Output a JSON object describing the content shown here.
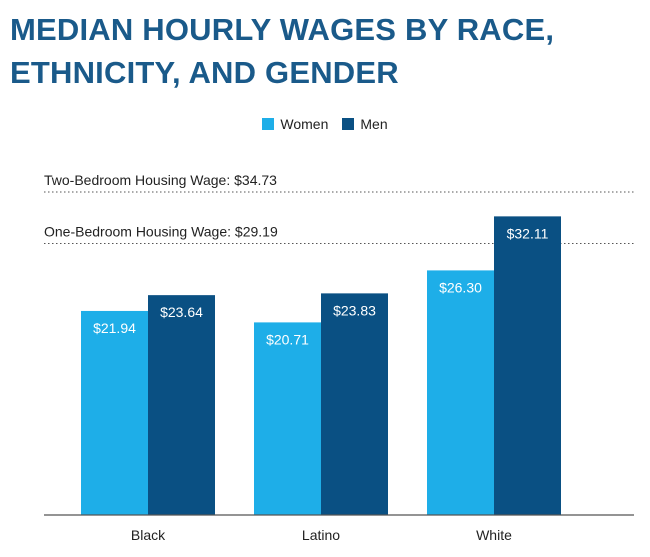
{
  "title": "MEDIAN HOURLY WAGES BY RACE, ETHNICITY, AND GENDER",
  "chart_data": {
    "type": "bar",
    "title": "MEDIAN HOURLY WAGES BY RACE, ETHNICITY, AND GENDER",
    "categories": [
      "Black",
      "Latino",
      "White"
    ],
    "series": [
      {
        "name": "Women",
        "values": [
          21.94,
          20.71,
          26.3
        ],
        "labels": [
          "$21.94",
          "$20.71",
          "$26.30"
        ],
        "color": "#1eaee8"
      },
      {
        "name": "Men",
        "values": [
          23.64,
          23.83,
          32.11
        ],
        "labels": [
          "$23.64",
          "$23.83",
          "$32.11"
        ],
        "color": "#0a5083"
      }
    ],
    "reference_lines": [
      {
        "label": "Two-Bedroom Housing Wage: $34.73",
        "value": 34.73
      },
      {
        "label": "One-Bedroom Housing Wage: $29.19",
        "value": 29.19
      }
    ],
    "xlabel": "",
    "ylabel": "",
    "ylim": [
      0,
      34.73
    ],
    "grid": false,
    "legend_position": "top-center"
  }
}
